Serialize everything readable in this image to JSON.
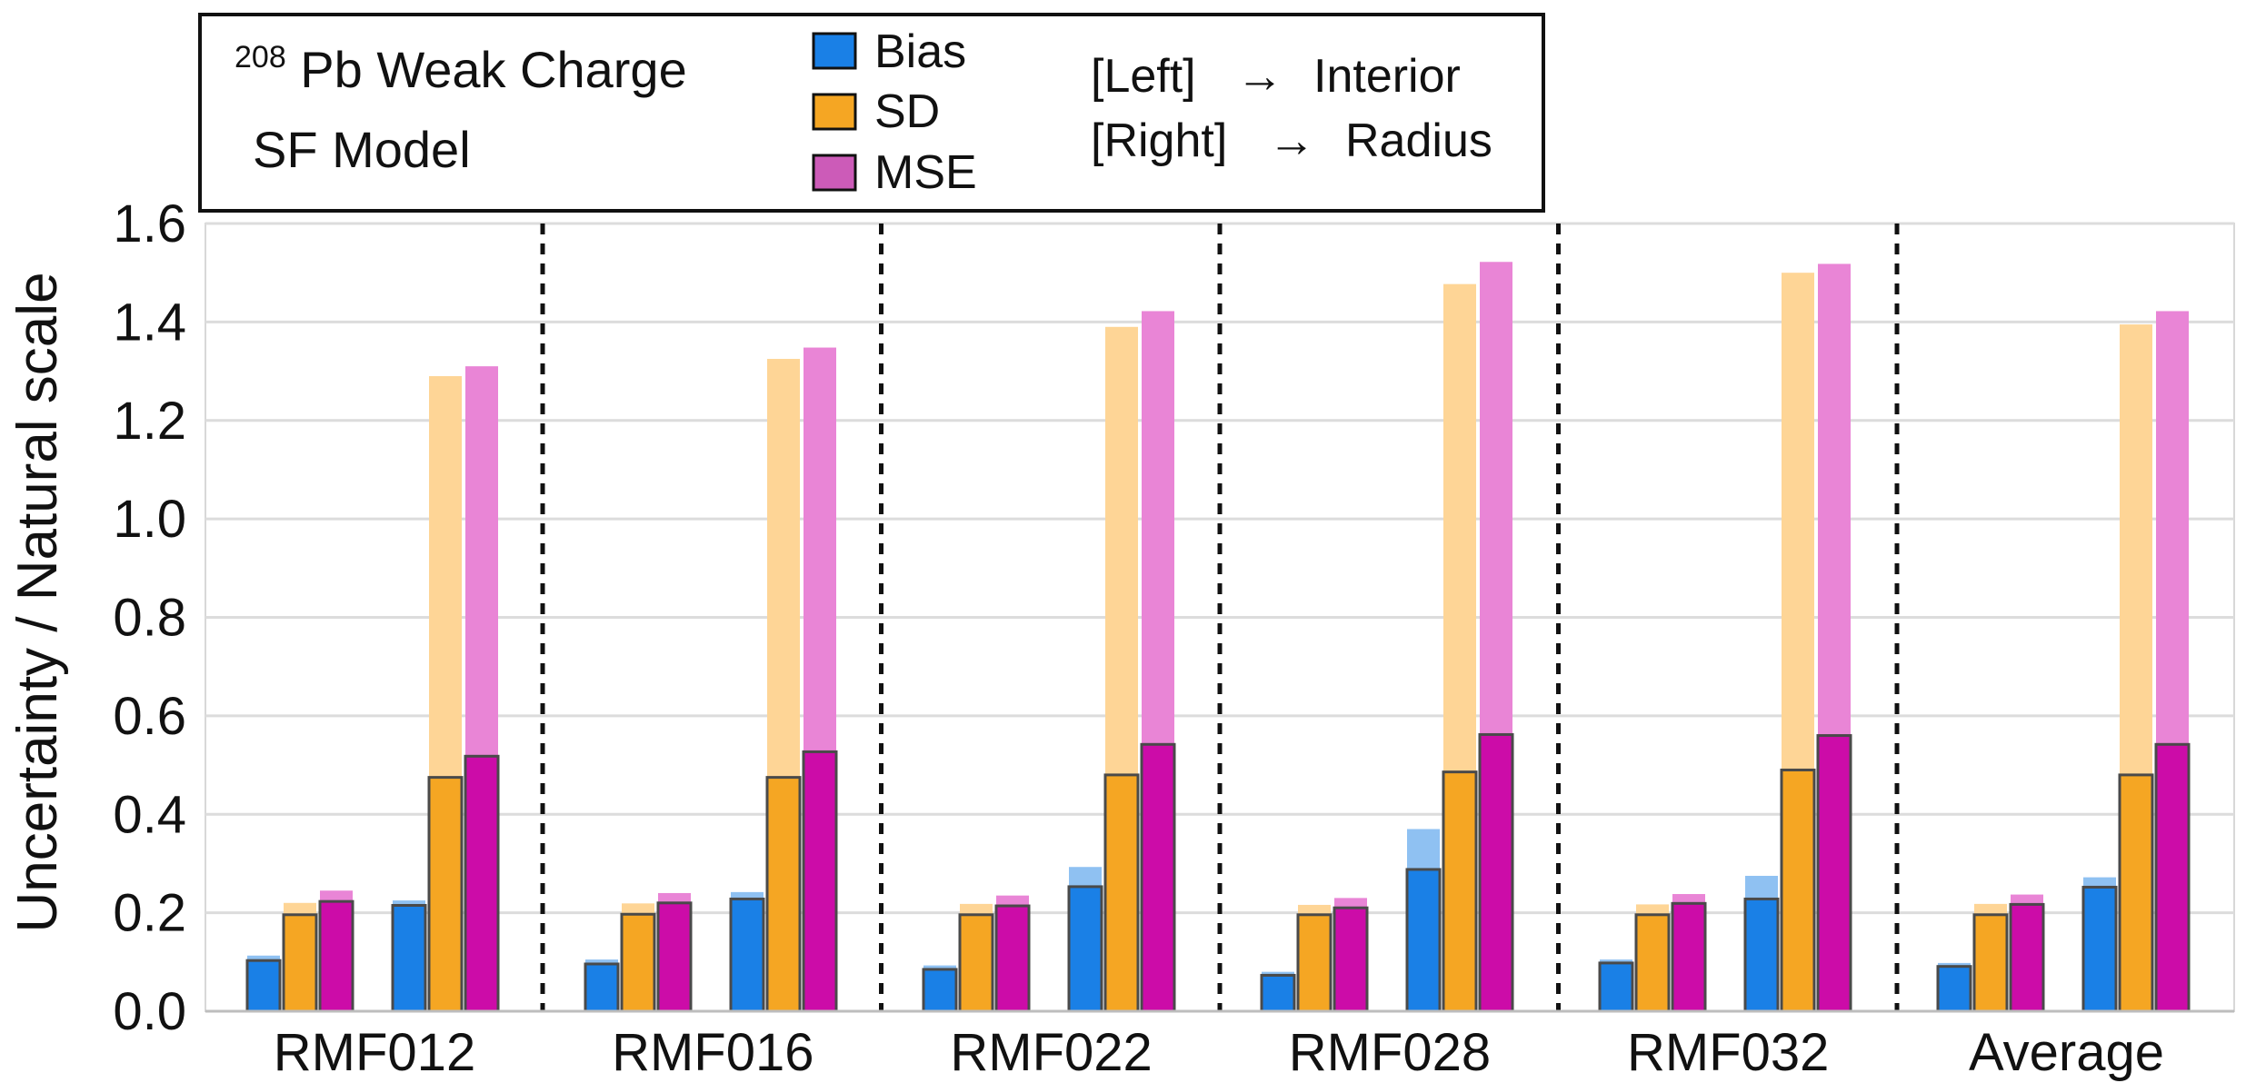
{
  "chart_data": {
    "type": "bar",
    "title_isotope_superscript": "208",
    "title": "Pb Weak Charge",
    "subtitle": "SF Model",
    "ylabel": "Uncertainty / Natural scale",
    "xlabel": "",
    "ylim": [
      0,
      1.6
    ],
    "yticks": [
      "0.0",
      "0.2",
      "0.4",
      "0.6",
      "0.8",
      "1.0",
      "1.2",
      "1.4",
      "1.6"
    ],
    "grid": true,
    "legend_position": "top-left",
    "legend": [
      {
        "name": "Bias",
        "color": "#1a80e6"
      },
      {
        "name": "SD",
        "color": "#f5a623"
      },
      {
        "name": "MSE",
        "color": "#cc0ca8"
      }
    ],
    "note_left": "[Left]",
    "note_left_target": "Interior",
    "note_right": "[Right]",
    "note_right_target": "Radius",
    "arrow": "→",
    "colors": {
      "bias": "#1a80e6",
      "bias_light": "#8fc1f2",
      "sd": "#f5a623",
      "sd_light": "#fed596",
      "mse": "#cc0ca8",
      "mse_light": "#e985d6"
    },
    "categories": [
      "RMF012",
      "RMF016",
      "RMF022",
      "RMF028",
      "RMF032",
      "Average"
    ],
    "series": [
      {
        "name": "Interior",
        "bias": [
          {
            "v": 0.103,
            "light": 0.113
          },
          {
            "v": 0.096,
            "light": 0.105
          },
          {
            "v": 0.085,
            "light": 0.093
          },
          {
            "v": 0.073,
            "light": 0.08
          },
          {
            "v": 0.098,
            "light": 0.105
          },
          {
            "v": 0.091,
            "light": 0.098
          }
        ],
        "sd": [
          {
            "v": 0.196,
            "light": 0.22
          },
          {
            "v": 0.197,
            "light": 0.219
          },
          {
            "v": 0.196,
            "light": 0.218
          },
          {
            "v": 0.196,
            "light": 0.216
          },
          {
            "v": 0.196,
            "light": 0.217
          },
          {
            "v": 0.196,
            "light": 0.218
          }
        ],
        "mse": [
          {
            "v": 0.223,
            "light": 0.245
          },
          {
            "v": 0.22,
            "light": 0.24
          },
          {
            "v": 0.214,
            "light": 0.235
          },
          {
            "v": 0.21,
            "light": 0.23
          },
          {
            "v": 0.219,
            "light": 0.238
          },
          {
            "v": 0.217,
            "light": 0.237
          }
        ]
      },
      {
        "name": "Radius",
        "bias": [
          {
            "v": 0.215,
            "light": 0.225
          },
          {
            "v": 0.228,
            "light": 0.242
          },
          {
            "v": 0.253,
            "light": 0.293
          },
          {
            "v": 0.288,
            "light": 0.37
          },
          {
            "v": 0.228,
            "light": 0.275
          },
          {
            "v": 0.252,
            "light": 0.272
          }
        ],
        "sd": [
          {
            "v": 0.475,
            "light": 1.29
          },
          {
            "v": 0.475,
            "light": 1.325
          },
          {
            "v": 0.48,
            "light": 1.39
          },
          {
            "v": 0.486,
            "light": 1.477
          },
          {
            "v": 0.49,
            "light": 1.5
          },
          {
            "v": 0.48,
            "light": 1.395
          }
        ],
        "mse": [
          {
            "v": 0.518,
            "light": 1.31
          },
          {
            "v": 0.527,
            "light": 1.348
          },
          {
            "v": 0.542,
            "light": 1.422
          },
          {
            "v": 0.562,
            "light": 1.522
          },
          {
            "v": 0.56,
            "light": 1.518
          },
          {
            "v": 0.542,
            "light": 1.422
          }
        ]
      }
    ]
  }
}
